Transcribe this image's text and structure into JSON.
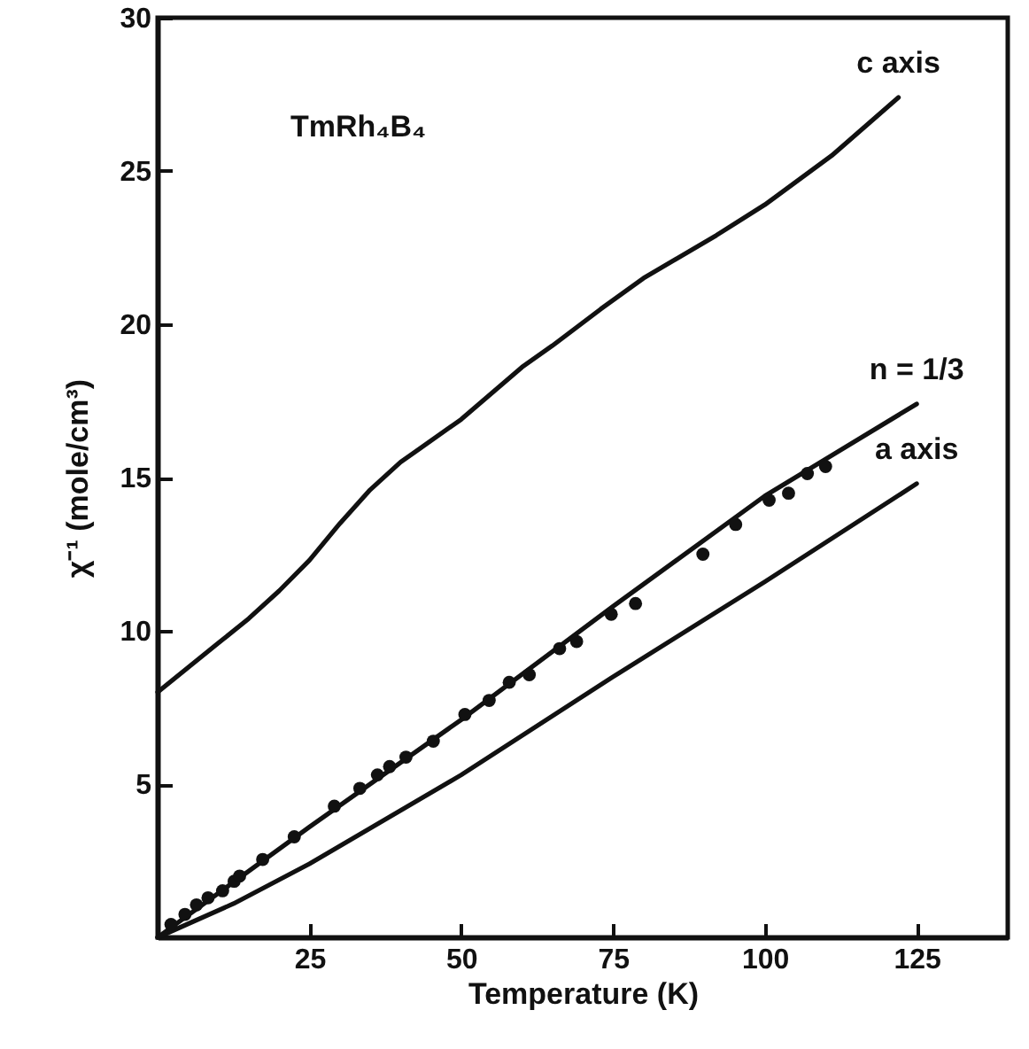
{
  "chart_data": {
    "type": "line",
    "xlabel": "Temperature (K)",
    "ylabel": "χ⁻¹ (mole/cm³)",
    "annotations": [
      "TmRh₄B₄"
    ],
    "xlim": [
      0,
      140
    ],
    "xticks": [
      25,
      50,
      75,
      100,
      125
    ],
    "ylim": [
      0,
      30
    ],
    "yticks": [
      5,
      10,
      15,
      20,
      25,
      30
    ],
    "line_style": "solid",
    "series": [
      {
        "name": "c axis",
        "color": "#111111",
        "x": [
          0,
          5,
          10,
          15,
          20,
          25,
          30,
          35,
          40,
          50,
          60,
          65,
          73,
          80,
          92,
          100,
          111,
          122
        ],
        "values": [
          8,
          8.8,
          9.6,
          10.4,
          11.3,
          12.3,
          13.5,
          14.6,
          15.5,
          16.9,
          18.6,
          19.3,
          20.5,
          21.5,
          22.9,
          23.9,
          25.5,
          27.4
        ]
      },
      {
        "name": "n = 1/3",
        "color": "#111111",
        "x": [
          0,
          25,
          50,
          75,
          100,
          125
        ],
        "values": [
          0,
          3.6,
          7.1,
          10.8,
          14.4,
          17.4
        ]
      },
      {
        "name": "a axis",
        "color": "#111111",
        "x": [
          0,
          12.5,
          25,
          50,
          75,
          100,
          125
        ],
        "values": [
          0,
          1.1,
          2.4,
          5.3,
          8.5,
          11.6,
          14.8
        ]
      },
      {
        "type": "scatter",
        "marker": "circle",
        "color": "#111111",
        "x": [
          2.2,
          4.5,
          6.4,
          8.3,
          10.7,
          12.6,
          13.5,
          17.3,
          22.5,
          29.1,
          33.3,
          36.2,
          38.2,
          40.9,
          45.4,
          50.6,
          54.6,
          57.9,
          61.2,
          66.2,
          69.0,
          74.7,
          78.7,
          89.8,
          95.2,
          100.7,
          103.9,
          107.0,
          110.0
        ],
        "values": [
          0.42,
          0.75,
          1.06,
          1.29,
          1.52,
          1.83,
          2.0,
          2.54,
          3.28,
          4.28,
          4.86,
          5.3,
          5.57,
          5.88,
          6.4,
          7.27,
          7.73,
          8.32,
          8.57,
          9.42,
          9.65,
          10.54,
          10.89,
          12.5,
          13.47,
          14.26,
          14.49,
          15.13,
          15.36
        ]
      }
    ]
  }
}
